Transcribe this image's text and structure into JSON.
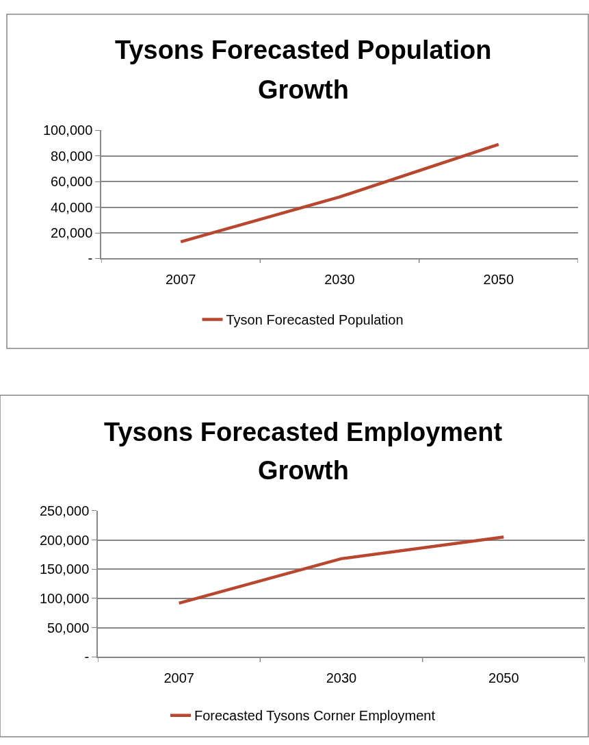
{
  "chart_data": [
    {
      "type": "line",
      "title": "Tysons Forecasted Population Growth",
      "categories": [
        "2007",
        "2030",
        "2050"
      ],
      "series": [
        {
          "name": "Tyson Forecasted Population",
          "color": "#b8472f",
          "values": [
            13000,
            48000,
            89000
          ]
        }
      ],
      "ylim": [
        0,
        100000
      ],
      "yticks": [
        {
          "value": 0,
          "label": "-"
        },
        {
          "value": 20000,
          "label": "20,000"
        },
        {
          "value": 40000,
          "label": "40,000"
        },
        {
          "value": 60000,
          "label": "60,000"
        },
        {
          "value": 80000,
          "label": "80,000"
        },
        {
          "value": 100000,
          "label": "100,000"
        }
      ],
      "grid": "y",
      "legend": "bottom",
      "marker": "none",
      "line_style": "solid"
    },
    {
      "type": "line",
      "title": "Tysons Forecasted Employment Growth",
      "categories": [
        "2007",
        "2030",
        "2050"
      ],
      "series": [
        {
          "name": "Forecasted Tysons Corner Employment",
          "color": "#b8472f",
          "values": [
            92000,
            168000,
            205000
          ]
        }
      ],
      "ylim": [
        0,
        250000
      ],
      "yticks": [
        {
          "value": 0,
          "label": "-"
        },
        {
          "value": 50000,
          "label": "50,000"
        },
        {
          "value": 100000,
          "label": "100,000"
        },
        {
          "value": 150000,
          "label": "150,000"
        },
        {
          "value": 200000,
          "label": "200,000"
        },
        {
          "value": 250000,
          "label": "250,000"
        }
      ],
      "grid": "y",
      "legend": "bottom",
      "marker": "none",
      "line_style": "solid"
    }
  ]
}
